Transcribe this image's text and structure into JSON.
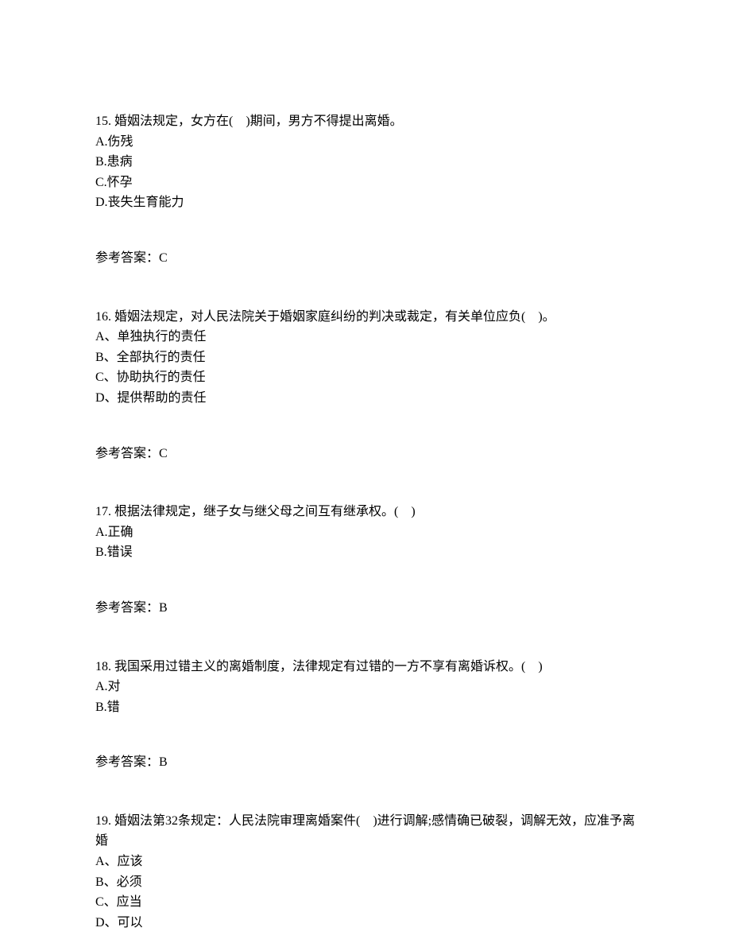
{
  "questions": [
    {
      "number": "15.",
      "text": "婚姻法规定，女方在(　)期间，男方不得提出离婚。",
      "options": [
        "A.伤残",
        "B.患病",
        "C.怀孕",
        "D.丧失生育能力"
      ],
      "answer_label": "参考答案：C"
    },
    {
      "number": "16.",
      "text": "婚姻法规定，对人民法院关于婚姻家庭纠纷的判决或裁定，有关单位应负(　)。",
      "options": [
        "A、单独执行的责任",
        "B、全部执行的责任",
        "C、协助执行的责任",
        "D、提供帮助的责任"
      ],
      "answer_label": "参考答案：C"
    },
    {
      "number": "17.",
      "text": "根据法律规定，继子女与继父母之间互有继承权。(　)",
      "options": [
        "A.正确",
        "B.错误"
      ],
      "answer_label": "参考答案：B"
    },
    {
      "number": "18.",
      "text": "我国采用过错主义的离婚制度，法律规定有过错的一方不享有离婚诉权。(　)",
      "options": [
        "A.对",
        "B.错"
      ],
      "answer_label": "参考答案：B"
    },
    {
      "number": "19.",
      "text": "婚姻法第32条规定：人民法院审理离婚案件(　)进行调解;感情确已破裂，调解无效，应准予离婚",
      "options": [
        "A、应该",
        "B、必须",
        "C、应当",
        "D、可以"
      ],
      "answer_label": ""
    }
  ]
}
